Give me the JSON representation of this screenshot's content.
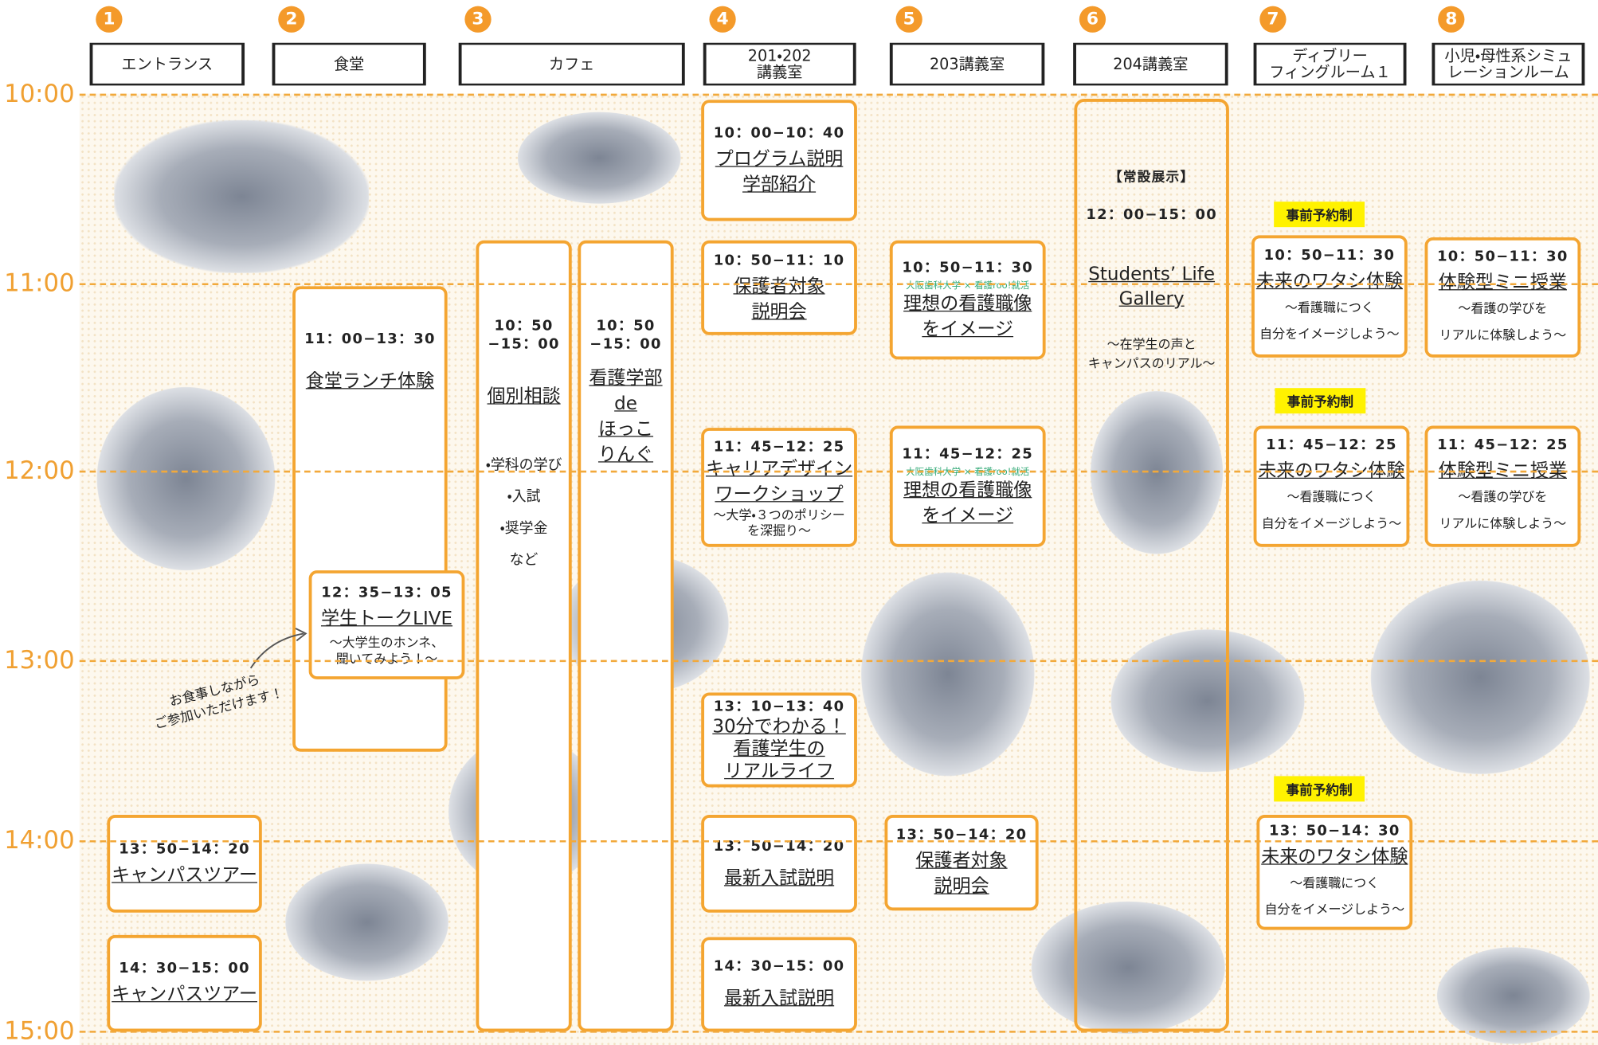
{
  "columns": [
    {
      "number": "1",
      "name": "エントランス"
    },
    {
      "number": "2",
      "name": "食堂"
    },
    {
      "number": "3",
      "name": "カフェ"
    },
    {
      "number": "4",
      "name": "201・202\n講義室"
    },
    {
      "number": "5",
      "name": "203講義室"
    },
    {
      "number": "6",
      "name": "204講義室"
    },
    {
      "number": "7",
      "name": "ディブリー\nフィングルーム１"
    },
    {
      "number": "8",
      "name": "小児・母性系シミュ\nレーションルーム"
    }
  ],
  "times": [
    "10:00",
    "11:00",
    "12:00",
    "13:00",
    "14:00",
    "15:00"
  ],
  "events": [
    {
      "time": "11：00−13：30",
      "title": "食堂ランチ体験"
    },
    {
      "time": "12：35−13：05",
      "title": "学生トークLIVE",
      "note": "〜大学生のホンネ、\n聞いてみよう！〜"
    },
    {
      "time": "10：50\n−15：00",
      "title": "個別相談",
      "note": "・学科の学び\n・入試\n・奨学金\nなど"
    },
    {
      "time": "10：50\n−15：00",
      "title": "看護学部\nde\nほっこ\nりんぐ"
    },
    {
      "time": "13：50−14：20",
      "title": "キャンパスツアー"
    },
    {
      "time": "14：30−15：00",
      "title": "キャンパスツアー"
    },
    {
      "time": "10：00−10：40",
      "title": "プログラム説明\n学部紹介"
    },
    {
      "time": "10：50−11：10",
      "title": "保護者対象\n説明会"
    },
    {
      "time": "11：45−12：25",
      "title": "キャリアデザイン\nワークショップ",
      "note": "〜大学・３つのポリシー\nを深掘り〜"
    },
    {
      "time": "13：10−13：40",
      "title": "30分でわかる！\n看護学生の\nリアルライフ"
    },
    {
      "time": "13：50−14：20",
      "title": "最新入試説明"
    },
    {
      "time": "14：30−15：00",
      "title": "最新入試説明"
    },
    {
      "time": "10：50−11：30",
      "partner": "大阪歯科大学 × 看護roo!就活",
      "title": "理想の看護職像\nをイメージ"
    },
    {
      "time": "11：45−12：25",
      "partner": "大阪歯科大学 × 看護roo!就活",
      "title": "理想の看護職像\nをイメージ"
    },
    {
      "time": "13：50−14：20",
      "title": "保護者対象\n説明会"
    },
    {
      "label": "【常設展示】",
      "time": "12：00−15：00",
      "title": "Students’ Life\nGallery",
      "note": "〜在学生の声と\nキャンパスのリアル〜"
    },
    {
      "badge": "事前予約制",
      "time": "10：50−11：30",
      "title": "未来のワタシ体験",
      "note": "〜看護職につく\n自分をイメージしよう〜"
    },
    {
      "badge": "事前予約制",
      "time": "11：45−12：25",
      "title": "未来のワタシ体験",
      "note": "〜看護職につく\n自分をイメージしよう〜"
    },
    {
      "badge": "事前予約制",
      "time": "13：50−14：30",
      "title": "未来のワタシ体験",
      "note": "〜看護職につく\n自分をイメージしよう〜"
    },
    {
      "time": "10：50−11：30",
      "title": "体験型ミニ授業",
      "note": "〜看護の学びを\nリアルに体験しよう〜"
    },
    {
      "time": "11：45−12：25",
      "title": "体験型ミニ授業",
      "note": "〜看護の学びを\nリアルに体験しよう〜"
    }
  ],
  "annotation": "お食事しながら\nご参加いただけます！"
}
